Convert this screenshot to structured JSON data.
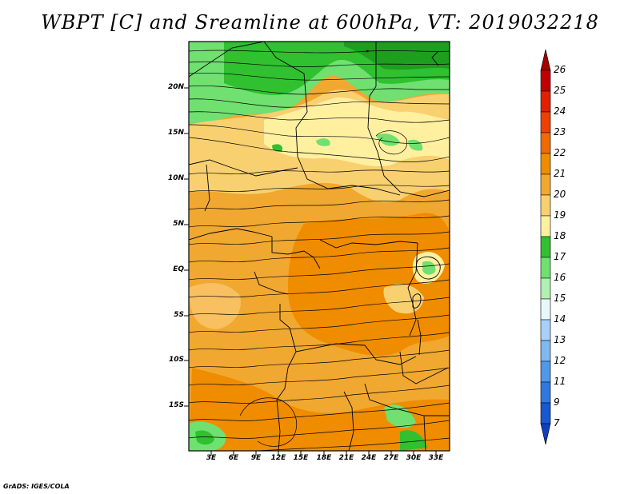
{
  "title": "WBPT [C] and Sreamline at 600hPa, VT: 2019032218",
  "latitude_labels": [
    "20N",
    "15N",
    "10N",
    "5N",
    "EQ",
    "5S",
    "10S",
    "15S"
  ],
  "longitude_labels": [
    "3E",
    "6E",
    "9E",
    "12E",
    "15E",
    "18E",
    "21E",
    "24E",
    "27E",
    "30E",
    "33E"
  ],
  "colorbar": {
    "levels": [
      "26",
      "25",
      "24",
      "23",
      "22",
      "21",
      "20",
      "19",
      "18",
      "17",
      "16",
      "15",
      "14",
      "13",
      "12",
      "11",
      "9",
      "7"
    ],
    "colors": [
      "#a50000",
      "#c00000",
      "#e02000",
      "#f04000",
      "#f06a00",
      "#f08c00",
      "#f0a830",
      "#f8d070",
      "#fff0a0",
      "#30c030",
      "#70e070",
      "#b0f0b0",
      "#e8f8f8",
      "#a8d0f8",
      "#80b8f0",
      "#5098e8",
      "#3078e0",
      "#1858d0",
      "#1040c0"
    ]
  },
  "credit": "GrADS: IGES/COLA"
}
